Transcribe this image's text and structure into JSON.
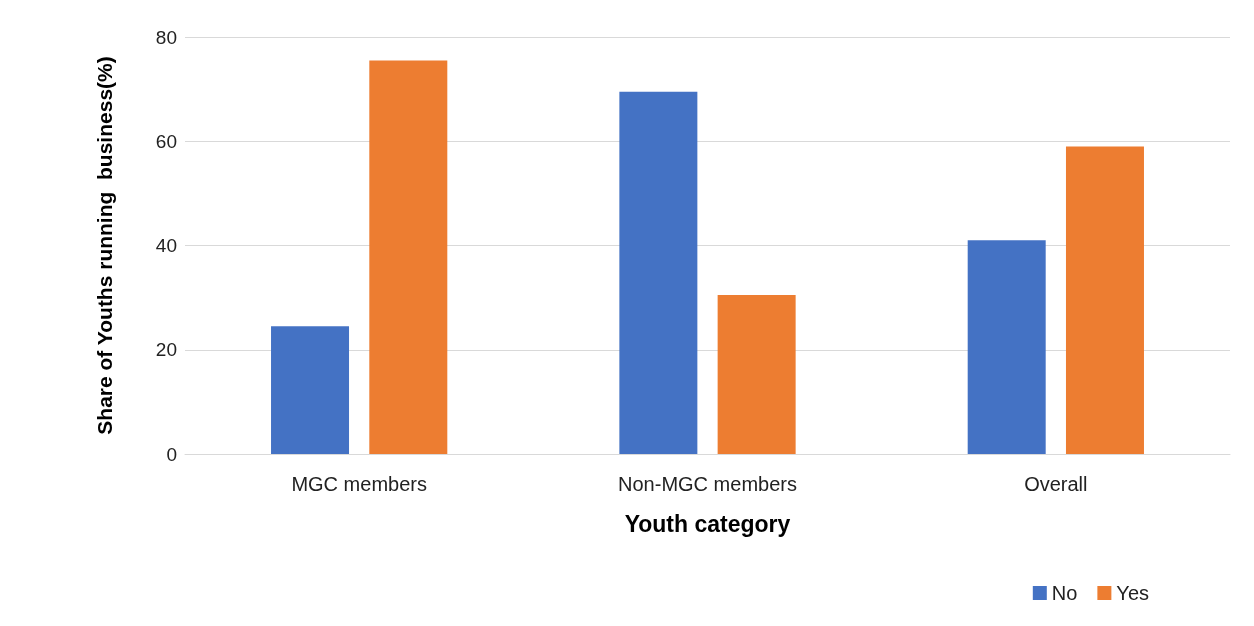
{
  "chart_data": {
    "type": "bar",
    "xlabel": "Youth category",
    "ylabel": "Share of Youths running  business(%)",
    "categories": [
      "MGC members",
      "Non-MGC members",
      "Overall"
    ],
    "series": [
      {
        "name": "No",
        "color": "#4472c4",
        "values": [
          24.5,
          69.5,
          41
        ]
      },
      {
        "name": "Yes",
        "color": "#ed7d31",
        "values": [
          75.5,
          30.5,
          59
        ]
      }
    ],
    "ylim": [
      0,
      80
    ],
    "yticks": [
      0,
      20,
      40,
      60,
      80
    ],
    "grid": "y",
    "legend": "bottom right"
  }
}
